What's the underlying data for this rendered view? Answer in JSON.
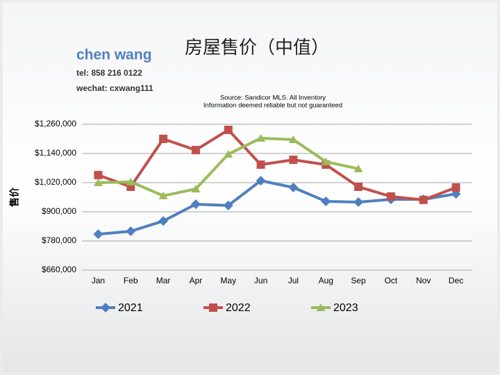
{
  "header": {
    "name": "chen wang",
    "tel": "tel: 858 216 0122",
    "wechat": "wechat: cxwang111"
  },
  "chart_data": {
    "type": "line",
    "title": "房屋售价（中值）",
    "annotations": [
      "Source: Sandicor MLS. All Inventory",
      "Information deemed reliable but not guaranteed"
    ],
    "y_label": "售价",
    "categories": [
      "Jan",
      "Feb",
      "Mar",
      "Apr",
      "May",
      "Jun",
      "Jul",
      "Aug",
      "Sep",
      "Oct",
      "Nov",
      "Dec"
    ],
    "series": [
      {
        "name": "2021",
        "color": "#4f7fc0",
        "marker": "diamond",
        "values": [
          808000,
          820000,
          862000,
          931000,
          926000,
          1028000,
          1000000,
          943000,
          940000,
          951000,
          951000,
          974000
        ]
      },
      {
        "name": "2022",
        "color": "#c0504d",
        "marker": "square",
        "values": [
          1051000,
          1003000,
          1200000,
          1154000,
          1237000,
          1094000,
          1114000,
          1094000,
          1003000,
          963000,
          949000,
          1000000
        ]
      },
      {
        "name": "2023",
        "color": "#9bbb59",
        "marker": "triangle",
        "values": [
          1020000,
          1023000,
          966000,
          994000,
          1137000,
          1203000,
          1197000,
          1106000,
          1077000,
          null,
          null,
          null
        ]
      }
    ],
    "ylim": [
      660000,
      1260000
    ],
    "yticks": [
      {
        "value": 660000,
        "label": "$660,000"
      },
      {
        "value": 780000,
        "label": "$780,000"
      },
      {
        "value": 900000,
        "label": "$900,000"
      },
      {
        "value": 1020000,
        "label": "$1,020,000"
      },
      {
        "value": 1140000,
        "label": "$1,140,000"
      },
      {
        "value": 1260000,
        "label": "$1,260,000"
      }
    ],
    "grid": true,
    "legend": "bottom"
  }
}
